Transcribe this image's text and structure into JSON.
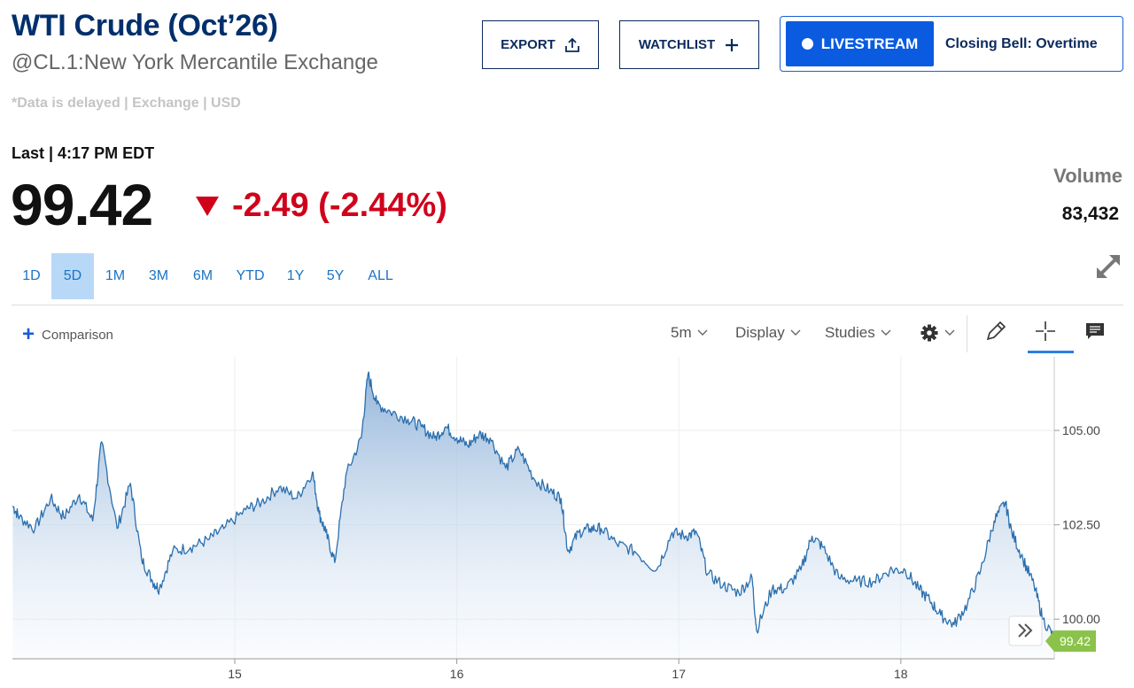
{
  "header": {
    "title": "WTI Crude (Oct’26)",
    "subtitle": "@CL.1:New York Mercantile Exchange",
    "delayed": "*Data is delayed | Exchange | USD"
  },
  "actions": {
    "export_label": "EXPORT",
    "watchlist_label": "WATCHLIST",
    "livestream_label": "LIVESTREAM",
    "show_label": "Closing Bell: Overtime"
  },
  "quote": {
    "last_label": "Last | 4:17 PM EDT",
    "price": "99.42",
    "change": "-2.49 (-2.44%)",
    "volume_label": "Volume",
    "volume_value": "83,432"
  },
  "ranges": [
    "1D",
    "5D",
    "1M",
    "3M",
    "6M",
    "YTD",
    "1Y",
    "5Y",
    "ALL"
  ],
  "active_range": "5D",
  "toolbar": {
    "comparison_label": "Comparison",
    "interval_label": "5m",
    "display_label": "Display",
    "studies_label": "Studies"
  },
  "icons": {
    "export": "share-icon",
    "watchlist": "plus-icon",
    "expand": "expand-icon",
    "settings": "gear-icon",
    "draw": "pencil-icon",
    "crosshair": "crosshair-icon",
    "comment": "comment-icon",
    "scroll": "double-chevron-right-icon"
  },
  "colors": {
    "brand_navy": "#002f6c",
    "accent_blue": "#0b5be0",
    "negative_red": "#d0021b",
    "line_blue": "#2a6fae",
    "price_tag_green": "#8bc34a"
  },
  "chart_data": {
    "type": "area",
    "title": "",
    "xlabel": "",
    "ylabel": "",
    "x_ticks": [
      "15",
      "16",
      "17",
      "18"
    ],
    "y_ticks": [
      "100.00",
      "102.50",
      "105.00"
    ],
    "ylim": [
      98.95,
      106.95
    ],
    "grid": true,
    "last_price_label": "99.42",
    "series": [
      {
        "x": [
          14.0,
          14.03,
          14.1,
          14.17,
          14.23,
          14.3,
          14.36,
          14.4,
          14.47,
          14.53,
          14.58,
          14.63,
          14.66,
          14.72,
          14.8,
          14.88,
          14.95,
          15.05,
          15.12,
          15.2,
          15.28,
          15.35,
          15.38,
          15.41,
          15.45,
          15.5,
          15.57,
          15.6,
          15.64,
          15.7,
          15.78,
          15.84,
          15.9,
          15.95,
          16.0,
          16.05,
          16.1,
          16.15,
          16.22,
          16.28,
          16.35,
          16.42,
          16.47,
          16.5,
          16.55,
          16.6,
          16.65,
          16.72,
          16.8,
          16.9,
          16.97,
          17.03,
          17.08,
          17.13,
          17.2,
          17.27,
          17.33,
          17.35,
          17.42,
          17.48,
          17.55,
          17.6,
          17.65,
          17.72,
          17.8,
          17.88,
          17.95,
          18.02,
          18.08,
          18.13,
          18.18,
          18.24,
          18.3,
          18.36,
          18.42,
          18.47,
          18.5,
          18.55,
          18.6,
          18.64,
          18.7
        ],
        "y": [
          103.0,
          102.7,
          102.4,
          103.2,
          102.7,
          103.3,
          102.6,
          104.7,
          102.4,
          103.6,
          101.6,
          101.0,
          100.8,
          101.8,
          101.9,
          102.1,
          102.4,
          102.9,
          103.1,
          103.5,
          103.2,
          103.9,
          102.8,
          102.3,
          101.5,
          103.8,
          104.8,
          106.5,
          105.7,
          105.5,
          105.3,
          105.1,
          104.8,
          105.1,
          104.8,
          104.6,
          104.9,
          104.8,
          104.0,
          104.5,
          103.7,
          103.4,
          103.2,
          101.8,
          102.3,
          102.4,
          102.4,
          102.0,
          101.8,
          101.3,
          102.3,
          102.2,
          102.3,
          101.2,
          100.9,
          100.7,
          101.1,
          99.7,
          100.8,
          100.8,
          101.3,
          102.2,
          101.9,
          101.1,
          101.0,
          101.0,
          101.3,
          101.3,
          100.8,
          100.5,
          100.1,
          99.85,
          100.4,
          101.3,
          102.6,
          103.1,
          102.3,
          101.6,
          100.9,
          100.0,
          99.42
        ]
      }
    ]
  }
}
